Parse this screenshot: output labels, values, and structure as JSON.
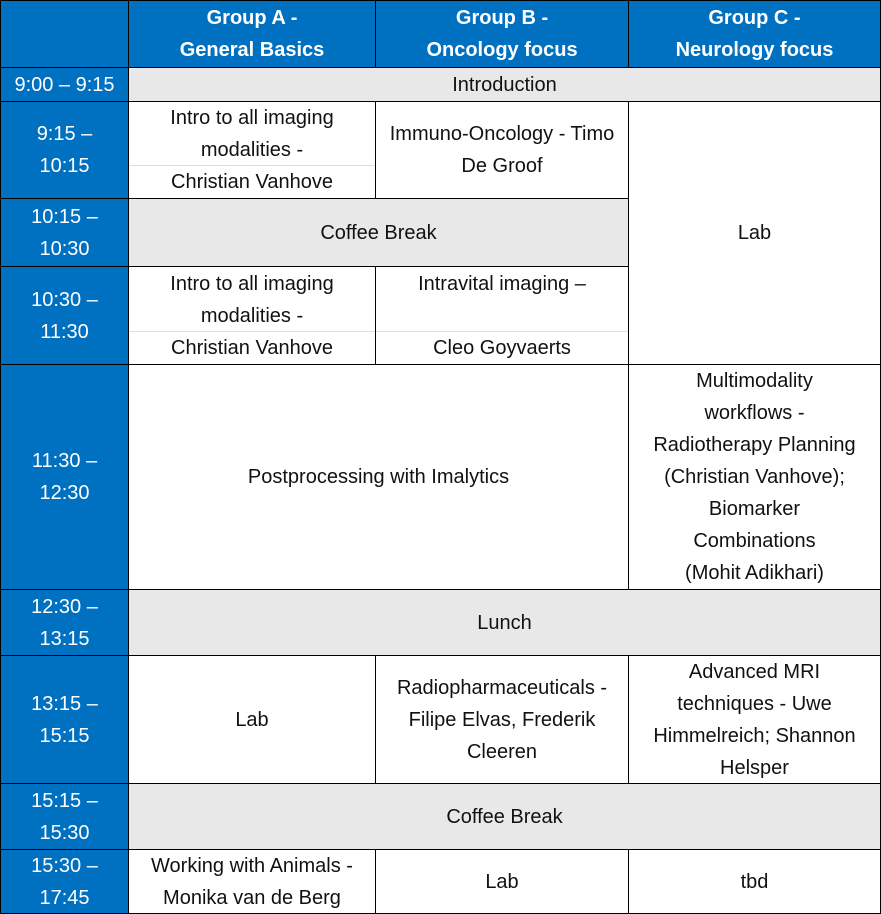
{
  "colors": {
    "header": "#0070C0",
    "break": "#E8E8E8"
  },
  "headers": [
    "",
    "Group A -\nGeneral Basics",
    "Group B -\nOncology focus",
    "Group C -\nNeurology focus"
  ],
  "times": [
    "9:00 – 9:15",
    "9:15 –\n10:15",
    "10:15 –\n10:30",
    "10:30 –\n11:30",
    "11:30 –\n12:30",
    "12:30 –\n13:15",
    "13:15 –\n15:15",
    "15:15 –\n15:30",
    "15:30 –\n17:45"
  ],
  "sessions": {
    "introduction": "Introduction",
    "a_1": "Intro to all imaging\nmodalities -\nChristian Vanhove",
    "b_1": "Immuno-Oncology - Timo\nDe Groof",
    "c_lab": "Lab",
    "coffee_1": "Coffee Break",
    "a_2": "Intro to all imaging\nmodalities -\nChristian Vanhove",
    "b_2": "Intravital imaging –\n\nCleo Goyvaerts",
    "ab_post": "Postprocessing with Imalytics",
    "c_multi": "Multimodality\nworkflows -\nRadiotherapy Planning\n(Christian Vanhove);\nBiomarker\nCombinations\n(Mohit Adikhari)",
    "lunch": "Lunch",
    "a_lab": "Lab",
    "b_radio": "Radiopharmaceuticals -\nFilipe Elvas, Frederik\nCleeren",
    "c_mri": "Advanced MRI\ntechniques - Uwe\nHimmelreich; Shannon\nHelsper",
    "coffee_2": "Coffee Break",
    "a_animals": "Working with Animals -\nMonika van de Berg",
    "b_lab": "Lab",
    "c_tbd": "tbd"
  }
}
